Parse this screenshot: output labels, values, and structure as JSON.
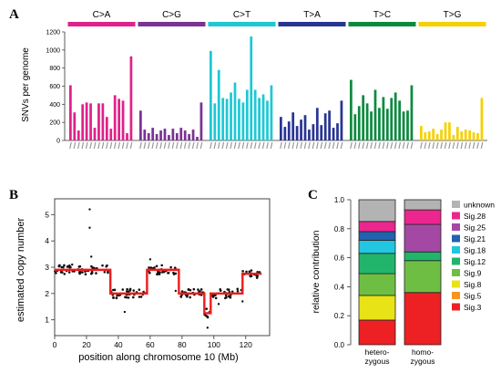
{
  "chart_data": [
    {
      "panel": "A",
      "type": "bar",
      "ylabel": "SNVs per genome",
      "ylim": [
        0,
        1200
      ],
      "yticks": [
        0,
        200,
        400,
        600,
        800,
        1000,
        1200
      ],
      "groups": [
        {
          "name": "C>A",
          "color": "#e0218a",
          "values": [
            610,
            310,
            110,
            400,
            420,
            410,
            140,
            410,
            410,
            260,
            130,
            500,
            460,
            440,
            80,
            930
          ]
        },
        {
          "name": "C>G",
          "color": "#7b3294",
          "values": [
            330,
            120,
            80,
            140,
            70,
            110,
            130,
            60,
            130,
            80,
            140,
            110,
            70,
            120,
            40,
            420
          ]
        },
        {
          "name": "C>T",
          "color": "#1ec8d4",
          "values": [
            990,
            410,
            780,
            470,
            460,
            530,
            640,
            460,
            420,
            560,
            1150,
            560,
            470,
            510,
            440,
            610
          ]
        },
        {
          "name": "T>A",
          "color": "#283593",
          "values": [
            260,
            150,
            210,
            310,
            160,
            230,
            280,
            120,
            180,
            360,
            170,
            300,
            330,
            140,
            190,
            440
          ]
        },
        {
          "name": "T>C",
          "color": "#0b8a3e",
          "values": [
            670,
            290,
            380,
            500,
            410,
            320,
            560,
            360,
            480,
            350,
            470,
            530,
            440,
            320,
            330,
            610
          ]
        },
        {
          "name": "T>G",
          "color": "#f5d000",
          "values": [
            160,
            90,
            100,
            130,
            70,
            120,
            200,
            200,
            60,
            150,
            100,
            120,
            110,
            90,
            80,
            470
          ]
        }
      ]
    },
    {
      "panel": "B",
      "type": "scatter",
      "xlabel": "position along chromosome 10 (Mb)",
      "ylabel": "estimated copy number",
      "xlim": [
        0,
        135
      ],
      "ylim": [
        0.4,
        5.6
      ],
      "xticks": [
        0,
        20,
        40,
        60,
        80,
        100,
        120
      ],
      "yticks": [
        1,
        2,
        3,
        4,
        5
      ],
      "segments": [
        {
          "x": [
            0,
            35
          ],
          "y": 2.9
        },
        {
          "x": [
            35,
            58
          ],
          "y": 2.0
        },
        {
          "x": [
            58,
            78
          ],
          "y": 2.9
        },
        {
          "x": [
            78,
            94
          ],
          "y": 2.0
        },
        {
          "x": [
            94,
            98
          ],
          "y": 1.25
        },
        {
          "x": [
            98,
            118
          ],
          "y": 2.0
        },
        {
          "x": [
            118,
            130
          ],
          "y": 2.75
        }
      ],
      "outliers": [
        [
          22,
          5.2
        ],
        [
          22,
          4.5
        ],
        [
          23,
          3.4
        ],
        [
          44,
          1.3
        ],
        [
          76,
          2.1
        ],
        [
          96,
          0.7
        ],
        [
          103,
          1.6
        ],
        [
          118,
          1.7
        ],
        [
          11,
          3.1
        ],
        [
          60,
          3.3
        ]
      ]
    },
    {
      "panel": "C",
      "type": "bar",
      "stacked": true,
      "ylabel": "relative contribution",
      "ylim": [
        0,
        1
      ],
      "yticks": [
        "0.0",
        "0.2",
        "0.4",
        "0.6",
        "0.8",
        "1.0"
      ],
      "categories": [
        "hetero-\nzygous",
        "homo-\nzygous"
      ],
      "series": [
        {
          "name": "Sig.3",
          "color": "#ed2024",
          "values": [
            0.17,
            0.36
          ]
        },
        {
          "name": "Sig.5",
          "color": "#f7941d",
          "values": [
            0.0,
            0.0
          ]
        },
        {
          "name": "Sig.8",
          "color": "#e8e317",
          "values": [
            0.17,
            0.0
          ]
        },
        {
          "name": "Sig.9",
          "color": "#6fbe44",
          "values": [
            0.15,
            0.22
          ]
        },
        {
          "name": "Sig.12",
          "color": "#21b56b",
          "values": [
            0.14,
            0.06
          ]
        },
        {
          "name": "Sig.18",
          "color": "#21c6e0",
          "values": [
            0.09,
            0.0
          ]
        },
        {
          "name": "Sig.21",
          "color": "#2262ae",
          "values": [
            0.06,
            0.0
          ]
        },
        {
          "name": "Sig.25",
          "color": "#a349a4",
          "values": [
            0.0,
            0.19
          ]
        },
        {
          "name": "Sig.28",
          "color": "#ec268f",
          "values": [
            0.07,
            0.1
          ]
        },
        {
          "name": "unknown",
          "color": "#b3b3b3",
          "values": [
            0.15,
            0.07
          ]
        }
      ]
    }
  ]
}
